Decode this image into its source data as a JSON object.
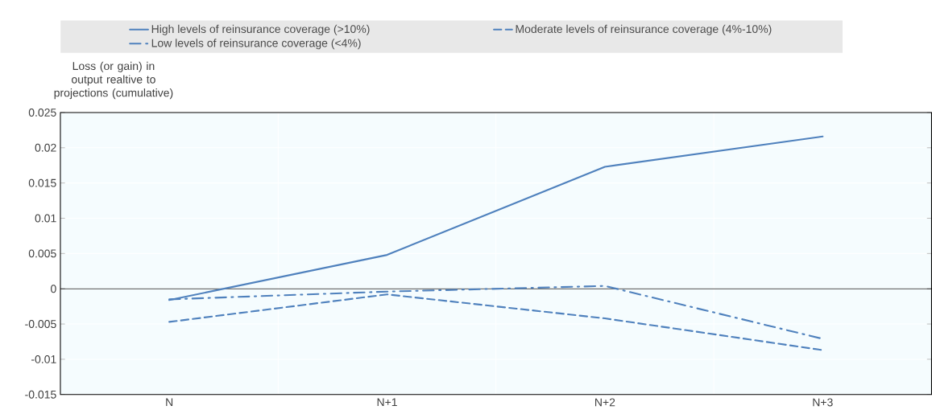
{
  "chart_data": {
    "type": "line",
    "ylabel": "Loss (or gain) in output realtive to projections (cumulative)",
    "categories": [
      "N",
      "N+1",
      "N+2",
      "N+3"
    ],
    "series": [
      {
        "name": "High levels of reinsurance coverage (>10%)",
        "color": "#4f81bd",
        "line_style": "solid",
        "values": [
          -0.0016,
          0.0048,
          0.0173,
          0.0216
        ]
      },
      {
        "name": "Moderate levels of reinsurance coverage (4%-10%)",
        "color": "#4f81bd",
        "line_style": "dashed",
        "values": [
          -0.0047,
          -0.0008,
          -0.0042,
          -0.0087
        ]
      },
      {
        "name": "Low levels of reinsurance coverage (<4%)",
        "color": "#4f81bd",
        "line_style": "dashdot",
        "values": [
          -0.0015,
          -0.0004,
          0.0004,
          -0.0071
        ]
      }
    ],
    "ylim": [
      -0.015,
      0.025
    ],
    "yticks": [
      -0.015,
      -0.01,
      -0.005,
      0,
      0.005,
      0.01,
      0.015,
      0.02,
      0.025
    ],
    "grid": true,
    "legend": "top"
  }
}
